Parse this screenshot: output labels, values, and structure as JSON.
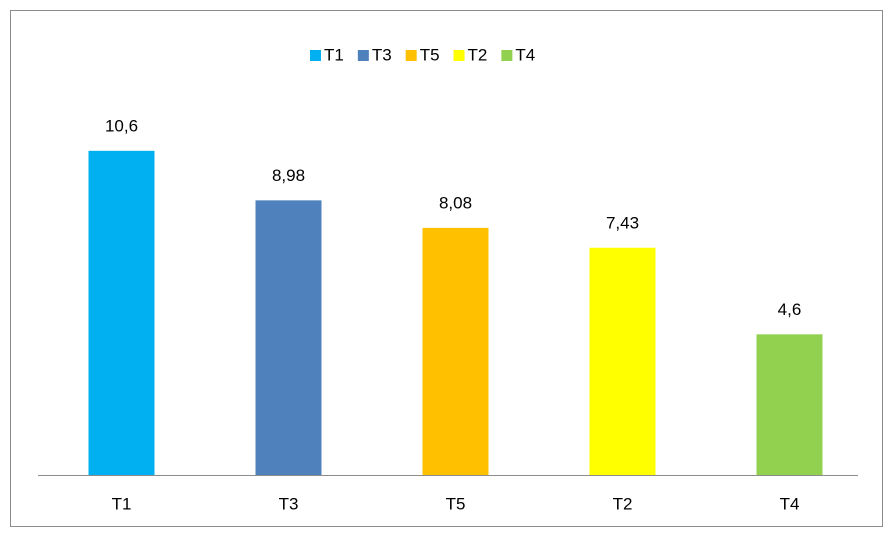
{
  "chart_data": {
    "type": "bar",
    "categories": [
      "T1",
      "T3",
      "T5",
      "T2",
      "T4"
    ],
    "values": [
      10.6,
      8.98,
      8.08,
      7.43,
      4.6
    ],
    "value_labels": [
      "10,6",
      "8,98",
      "8,08",
      "7,43",
      "4,6"
    ],
    "colors": [
      "#00b0f0",
      "#4f81bd",
      "#ffc000",
      "#ffff00",
      "#92d050"
    ],
    "ylim": [
      0,
      12
    ],
    "legend": "top"
  }
}
